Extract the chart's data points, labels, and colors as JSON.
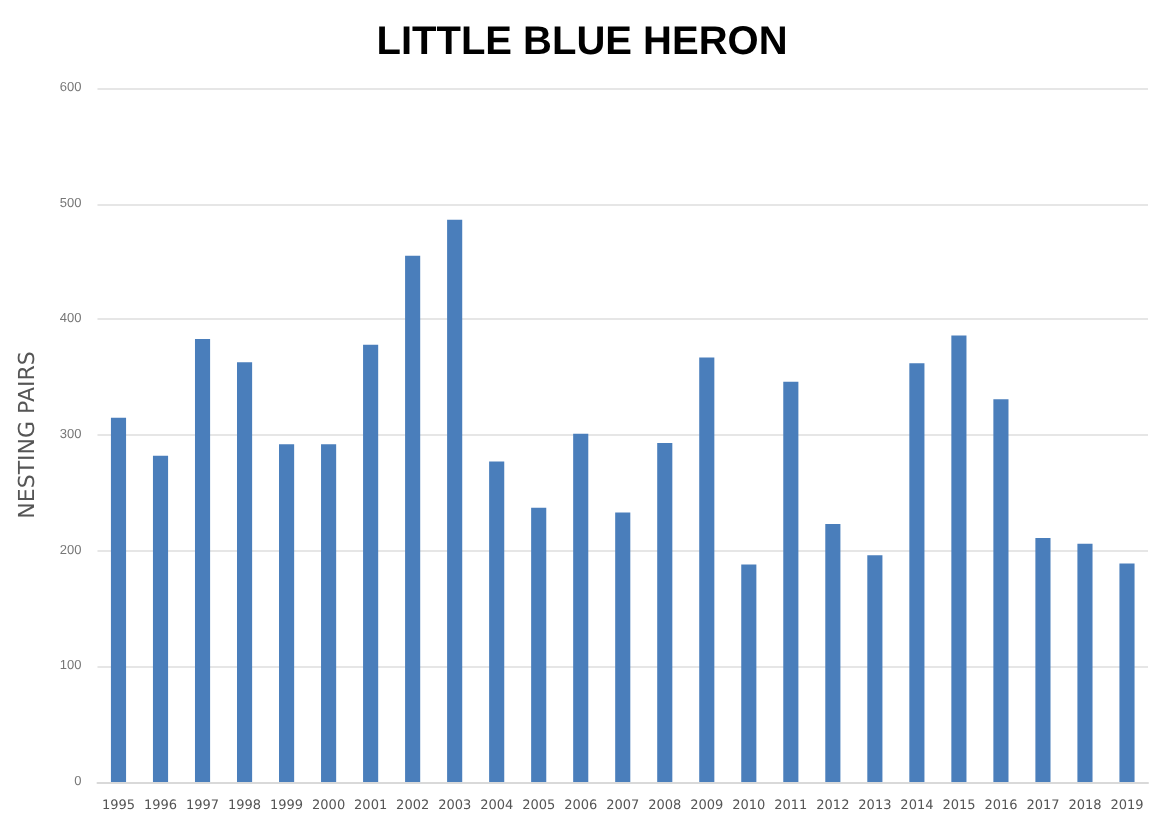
{
  "chart_data": {
    "type": "bar",
    "title": "LITTLE BLUE HERON",
    "ylabel": "NESTING PAIRS",
    "categories": [
      "1995",
      "1996",
      "1997",
      "1998",
      "1999",
      "2000",
      "2001",
      "2002",
      "2003",
      "2004",
      "2005",
      "2006",
      "2007",
      "2008",
      "2009",
      "2010",
      "2011",
      "2012",
      "2013",
      "2014",
      "2015",
      "2016",
      "2017",
      "2018",
      "2019"
    ],
    "values": [
      315,
      282,
      383,
      363,
      292,
      292,
      378,
      455,
      486,
      277,
      237,
      301,
      233,
      293,
      367,
      188,
      346,
      223,
      196,
      362,
      386,
      331,
      211,
      206,
      189
    ],
    "color": "#4a7ebb",
    "ylim": [
      0,
      600
    ],
    "yticks": [
      0,
      100,
      200,
      300,
      400,
      500,
      600
    ],
    "grid": "y"
  }
}
